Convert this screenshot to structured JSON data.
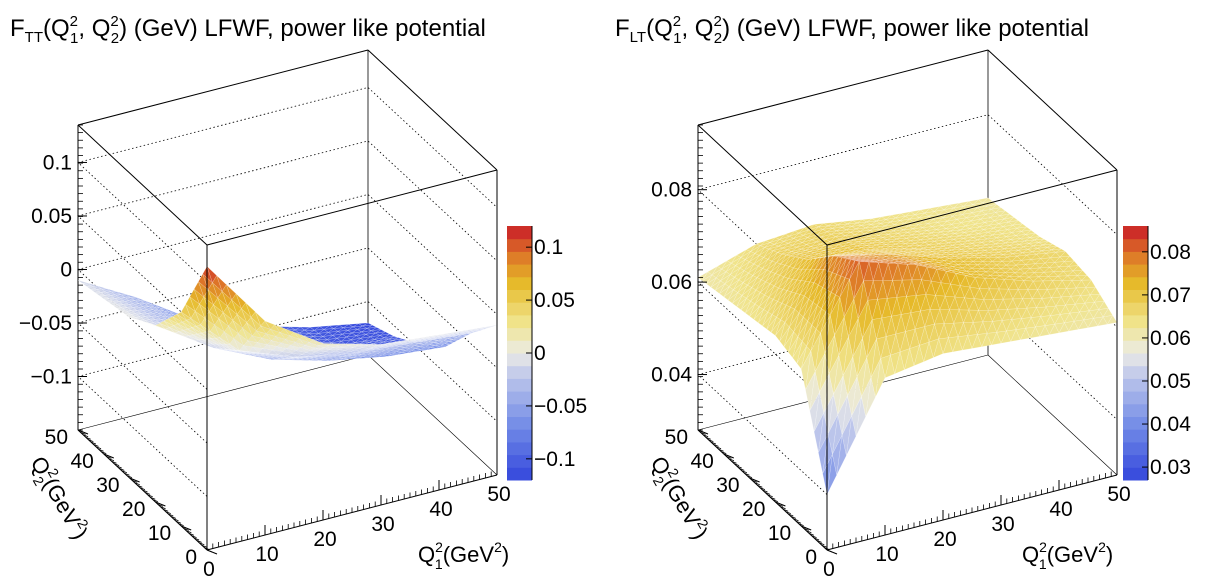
{
  "chart_data": [
    {
      "type": "surface3d",
      "title": "F_TT(Q_1^2, Q_2^2) (GeV)  LFWF, power like potential",
      "title_parts": {
        "main": "F",
        "main_sub": "TT",
        "args": "(Q",
        "sup1": "2",
        "sub1": "1",
        "mid": ", Q",
        "sup2": "2",
        "sub2": "2",
        "rest": ") (GeV)  LFWF, power like potential"
      },
      "xlabel": "Q_1^2(GeV^2)",
      "ylabel": "Q_2^2(GeV^2)",
      "xlim": [
        0,
        50
      ],
      "ylim": [
        0,
        50
      ],
      "zlim": [
        -0.15,
        0.135
      ],
      "x_ticks": [
        "0",
        "10",
        "20",
        "30",
        "40",
        "50"
      ],
      "y_ticks": [
        "0",
        "10",
        "20",
        "30",
        "40",
        "50"
      ],
      "z_ticks": [
        "−0.1",
        "−0.05",
        "0",
        "0.05",
        "0.1"
      ],
      "z_tick_values": [
        -0.1,
        -0.05,
        0,
        0.05,
        0.1
      ],
      "colorbar": {
        "min": -0.12,
        "max": 0.12,
        "ticks": [
          "−0.1",
          "−0.05",
          "0",
          "0.05",
          "0.1"
        ],
        "tick_values": [
          -0.1,
          -0.05,
          0,
          0.05,
          0.1
        ]
      },
      "surface": {
        "x": [
          0,
          10,
          20,
          30,
          40,
          50
        ],
        "y": [
          0,
          10,
          20,
          30,
          40,
          50
        ],
        "z": [
          [
            0.115,
            0.05,
            0.015,
            0.0,
            -0.005,
            -0.01
          ],
          [
            0.05,
            0.0,
            -0.02,
            -0.03,
            -0.035,
            -0.04
          ],
          [
            0.015,
            -0.02,
            -0.045,
            -0.06,
            -0.07,
            -0.075
          ],
          [
            0.0,
            -0.03,
            -0.06,
            -0.08,
            -0.09,
            -0.095
          ],
          [
            -0.005,
            -0.035,
            -0.07,
            -0.09,
            -0.105,
            -0.11
          ],
          [
            -0.01,
            -0.04,
            -0.075,
            -0.095,
            -0.11,
            -0.12
          ]
        ]
      }
    },
    {
      "type": "surface3d",
      "title": "F_LT(Q_1^2, Q_2^2) (GeV)  LFWF, power like potential",
      "title_parts": {
        "main": "F",
        "main_sub": "LT",
        "args": "(Q",
        "sup1": "2",
        "sub1": "1",
        "mid": ", Q",
        "sup2": "2",
        "sub2": "2",
        "rest": ") (GeV)  LFWF, power like potential"
      },
      "xlabel": "Q_1^2(GeV^2)",
      "ylabel": "Q_2^2(GeV^2)",
      "xlim": [
        0,
        50
      ],
      "ylim": [
        0,
        50
      ],
      "zlim": [
        0.028,
        0.094
      ],
      "x_ticks": [
        "0",
        "10",
        "20",
        "30",
        "40",
        "50"
      ],
      "y_ticks": [
        "0",
        "10",
        "20",
        "30",
        "40",
        "50"
      ],
      "z_ticks": [
        "0.04",
        "0.06",
        "0.08"
      ],
      "z_tick_values": [
        0.04,
        0.06,
        0.08
      ],
      "colorbar": {
        "min": 0.027,
        "max": 0.086,
        "ticks": [
          "0.03",
          "0.04",
          "0.05",
          "0.06",
          "0.07",
          "0.08"
        ],
        "tick_values": [
          0.03,
          0.04,
          0.05,
          0.06,
          0.07,
          0.08
        ]
      },
      "surface": {
        "x": [
          0,
          10,
          20,
          30,
          40,
          50
        ],
        "y": [
          0,
          10,
          20,
          30,
          40,
          50
        ],
        "z": [
          [
            0.04,
            0.062,
            0.064,
            0.063,
            0.062,
            0.061
          ],
          [
            0.062,
            0.082,
            0.078,
            0.072,
            0.068,
            0.065
          ],
          [
            0.064,
            0.078,
            0.075,
            0.071,
            0.068,
            0.066
          ],
          [
            0.063,
            0.072,
            0.071,
            0.068,
            0.066,
            0.064
          ],
          [
            0.062,
            0.068,
            0.068,
            0.066,
            0.064,
            0.063
          ],
          [
            0.061,
            0.065,
            0.066,
            0.064,
            0.063,
            0.062
          ]
        ]
      }
    }
  ]
}
